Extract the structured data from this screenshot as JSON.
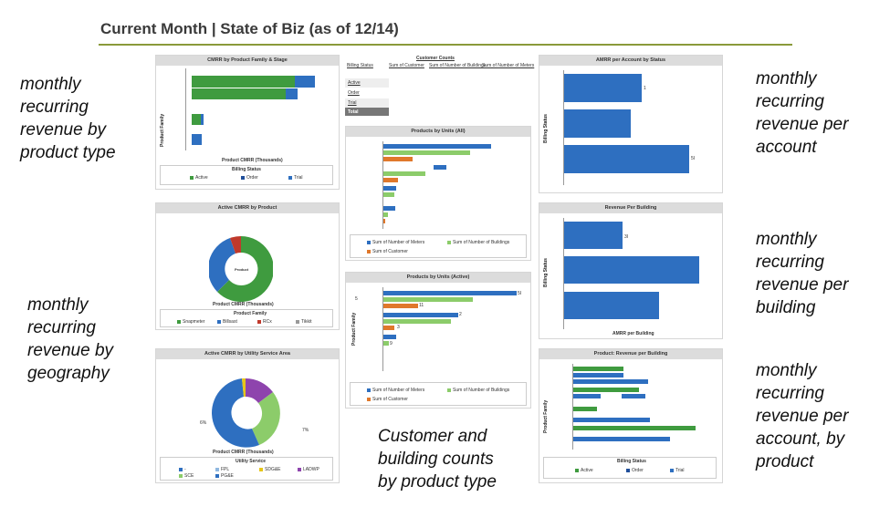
{
  "header": {
    "title": "Current Month | State of Biz (as of 12/14)"
  },
  "notes": {
    "left_top": [
      "monthly",
      "recurring",
      "revenue by",
      "product type"
    ],
    "left_bottom": [
      "monthly",
      "recurring",
      "revenue by",
      "geography"
    ],
    "center_bottom": [
      "Customer and",
      "building counts",
      "by product type"
    ],
    "right_1": [
      "monthly",
      "recurring",
      "revenue per",
      "account"
    ],
    "right_2": [
      "monthly",
      "recurring",
      "revenue per",
      "building"
    ],
    "right_3": [
      "monthly",
      "recurring",
      "revenue per",
      "account, by",
      "product"
    ]
  },
  "colors": {
    "active": "#3f9b3f",
    "order": "#2e6fc0",
    "trial": "#2e6fc0",
    "meters": "#2e6fc0",
    "buildings": "#8ccc6a",
    "customer": "#e0782b",
    "rcx": "#c0392b",
    "ladwp": "#8e44ad",
    "sdge": "#e6c619"
  },
  "cmrr_by_product": {
    "title": "CMRR by Product Family & Stage",
    "ylabel": "Product Family",
    "xlabel": "Product CMRR (Thousands)",
    "legend_title": "Billing Status",
    "legend": [
      "Active",
      "Order",
      "Trial"
    ]
  },
  "active_cmrr_by_product": {
    "title": "Active CMRR by Product",
    "center_label": "Product",
    "xlabel": "Product CMRR (Thousands)",
    "legend_title": "Product Family",
    "legend": [
      "Snapmeter",
      "Billsast",
      "RCx",
      "Tikkit"
    ]
  },
  "active_cmrr_by_utility": {
    "title": "Active CMRR by Utility Service Area",
    "left_label": "6%",
    "right_label": "7%",
    "xlabel": "Product CMRR (Thousands)",
    "legend_title": "Utility Service",
    "legend": [
      "-",
      "FPL",
      "SDG&E",
      "LADWP",
      "SCE",
      "PG&E"
    ]
  },
  "customer_counts": {
    "title": "Customer Counts",
    "headers": [
      "Billing Status",
      "Sum of Customer",
      "Sum of Number of Buildings",
      "Sum of Number of Meters"
    ],
    "rows": [
      "Active",
      "Order",
      "Trial",
      "Total"
    ]
  },
  "products_by_units_all": {
    "title": "Products by Units (All)",
    "legend": [
      "Sum of Number of Meters",
      "Sum of Number of Buildings",
      "Sum of Customer"
    ]
  },
  "products_by_units_active": {
    "title": "Products by Units (Active)",
    "ylabel": "Product Family",
    "legend": [
      "Sum of Number of Meters",
      "Sum of Number of Buildings",
      "Sum of Customer"
    ],
    "labels": [
      "5I",
      "5",
      "11",
      "2",
      "3",
      "9"
    ]
  },
  "amrr_per_account": {
    "title": "AMRR per Account by Status",
    "ylabel": "Billing Status",
    "labels": [
      "1",
      "5I"
    ]
  },
  "revenue_per_building": {
    "title": "Revenue Per Building",
    "ylabel": "Billing Status",
    "xlabel": "AMRR per Building",
    "labels": [
      "3I"
    ]
  },
  "product_revenue_per_building": {
    "title": "Product: Revenue per Building",
    "ylabel": "Product Family",
    "legend_title": "Billing Status",
    "legend": [
      "Active",
      "Order",
      "Trial"
    ]
  }
}
